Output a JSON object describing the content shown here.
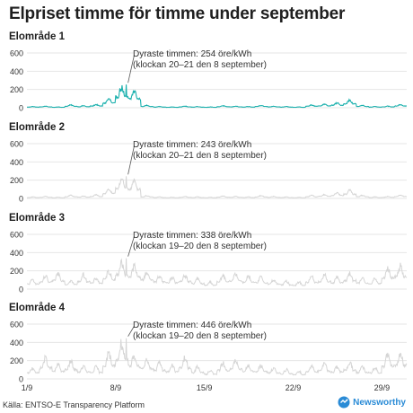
{
  "title": "Elpriset timme för timme under september",
  "source": "Källa: ENTSO-E Transparency Platform",
  "brand": "Newsworthy",
  "colors": {
    "highlight": "#1ab0ad",
    "muted": "#d5d5d5",
    "grid": "#e6e6e6",
    "text": "#333333",
    "brand": "#2a8bd6"
  },
  "chart_data": [
    {
      "type": "line",
      "title": "Elområde 1",
      "highlighted": true,
      "ylim": [
        0,
        600
      ],
      "yticks": [
        0,
        200,
        400,
        600
      ],
      "x": [
        "1/9",
        "2/9",
        "3/9",
        "4/9",
        "5/9",
        "6/9",
        "7/9",
        "8/9",
        "9/9",
        "10/9",
        "11/9",
        "12/9",
        "13/9",
        "14/9",
        "15/9",
        "16/9",
        "17/9",
        "18/9",
        "19/9",
        "20/9",
        "21/9",
        "22/9",
        "23/9",
        "24/9",
        "25/9",
        "26/9",
        "27/9",
        "28/9",
        "29/9",
        "30/9"
      ],
      "xticks": [
        "1/9",
        "8/9",
        "15/9",
        "22/9",
        "29/9"
      ],
      "values": [
        15,
        20,
        10,
        35,
        25,
        40,
        110,
        254,
        210,
        30,
        15,
        10,
        20,
        15,
        10,
        25,
        20,
        15,
        30,
        20,
        15,
        10,
        35,
        45,
        60,
        95,
        30,
        15,
        20,
        40
      ],
      "annotation": {
        "line1": "Dyraste timmen: 254 öre/kWh",
        "line2": "(klockan 20–21 den 8 september)"
      }
    },
    {
      "type": "line",
      "title": "Elområde 2",
      "highlighted": false,
      "ylim": [
        0,
        600
      ],
      "yticks": [
        0,
        200,
        400,
        600
      ],
      "x": [
        "1/9",
        "2/9",
        "3/9",
        "4/9",
        "5/9",
        "6/9",
        "7/9",
        "8/9",
        "9/9",
        "10/9",
        "11/9",
        "12/9",
        "13/9",
        "14/9",
        "15/9",
        "16/9",
        "17/9",
        "18/9",
        "19/9",
        "20/9",
        "21/9",
        "22/9",
        "23/9",
        "24/9",
        "25/9",
        "26/9",
        "27/9",
        "28/9",
        "29/9",
        "30/9"
      ],
      "xticks": [
        "1/9",
        "8/9",
        "15/9",
        "22/9",
        "29/9"
      ],
      "values": [
        20,
        25,
        15,
        40,
        30,
        45,
        115,
        243,
        220,
        35,
        20,
        15,
        25,
        20,
        15,
        30,
        25,
        20,
        35,
        25,
        20,
        15,
        40,
        50,
        70,
        100,
        40,
        20,
        25,
        45
      ],
      "annotation": {
        "line1": "Dyraste timmen: 243 öre/kWh",
        "line2": "(klockan 20–21 den 8 september)"
      }
    },
    {
      "type": "line",
      "title": "Elområde 3",
      "highlighted": false,
      "ylim": [
        0,
        600
      ],
      "yticks": [
        0,
        200,
        400,
        600
      ],
      "x": [
        "1/9",
        "2/9",
        "3/9",
        "4/9",
        "5/9",
        "6/9",
        "7/9",
        "8/9",
        "9/9",
        "10/9",
        "11/9",
        "12/9",
        "13/9",
        "14/9",
        "15/9",
        "16/9",
        "17/9",
        "18/9",
        "19/9",
        "20/9",
        "21/9",
        "22/9",
        "23/9",
        "24/9",
        "25/9",
        "26/9",
        "27/9",
        "28/9",
        "29/9",
        "30/9"
      ],
      "xticks": [
        "1/9",
        "8/9",
        "15/9",
        "22/9",
        "29/9"
      ],
      "values": [
        120,
        160,
        200,
        110,
        180,
        140,
        230,
        338,
        290,
        220,
        170,
        150,
        180,
        130,
        90,
        170,
        200,
        160,
        150,
        120,
        100,
        90,
        160,
        180,
        150,
        200,
        140,
        130,
        260,
        300
      ],
      "annotation": {
        "line1": "Dyraste timmen: 338 öre/kWh",
        "line2": "(klockan 19–20 den 8 september)"
      }
    },
    {
      "type": "line",
      "title": "Elområde 4",
      "highlighted": false,
      "ylim": [
        0,
        600
      ],
      "yticks": [
        0,
        200,
        400,
        600
      ],
      "x": [
        "1/9",
        "2/9",
        "3/9",
        "4/9",
        "5/9",
        "6/9",
        "7/9",
        "8/9",
        "9/9",
        "10/9",
        "11/9",
        "12/9",
        "13/9",
        "14/9",
        "15/9",
        "16/9",
        "17/9",
        "18/9",
        "19/9",
        "20/9",
        "21/9",
        "22/9",
        "23/9",
        "24/9",
        "25/9",
        "26/9",
        "27/9",
        "28/9",
        "29/9",
        "30/9"
      ],
      "xticks": [
        "1/9",
        "8/9",
        "15/9",
        "22/9",
        "29/9"
      ],
      "values": [
        140,
        260,
        180,
        220,
        160,
        150,
        320,
        446,
        300,
        250,
        200,
        170,
        260,
        150,
        110,
        200,
        230,
        180,
        170,
        140,
        120,
        100,
        170,
        190,
        160,
        210,
        150,
        140,
        300,
        320
      ],
      "annotation": {
        "line1": "Dyraste timmen: 446 öre/kWh",
        "line2": "(klockan 19–20 den 8 september)"
      }
    }
  ]
}
